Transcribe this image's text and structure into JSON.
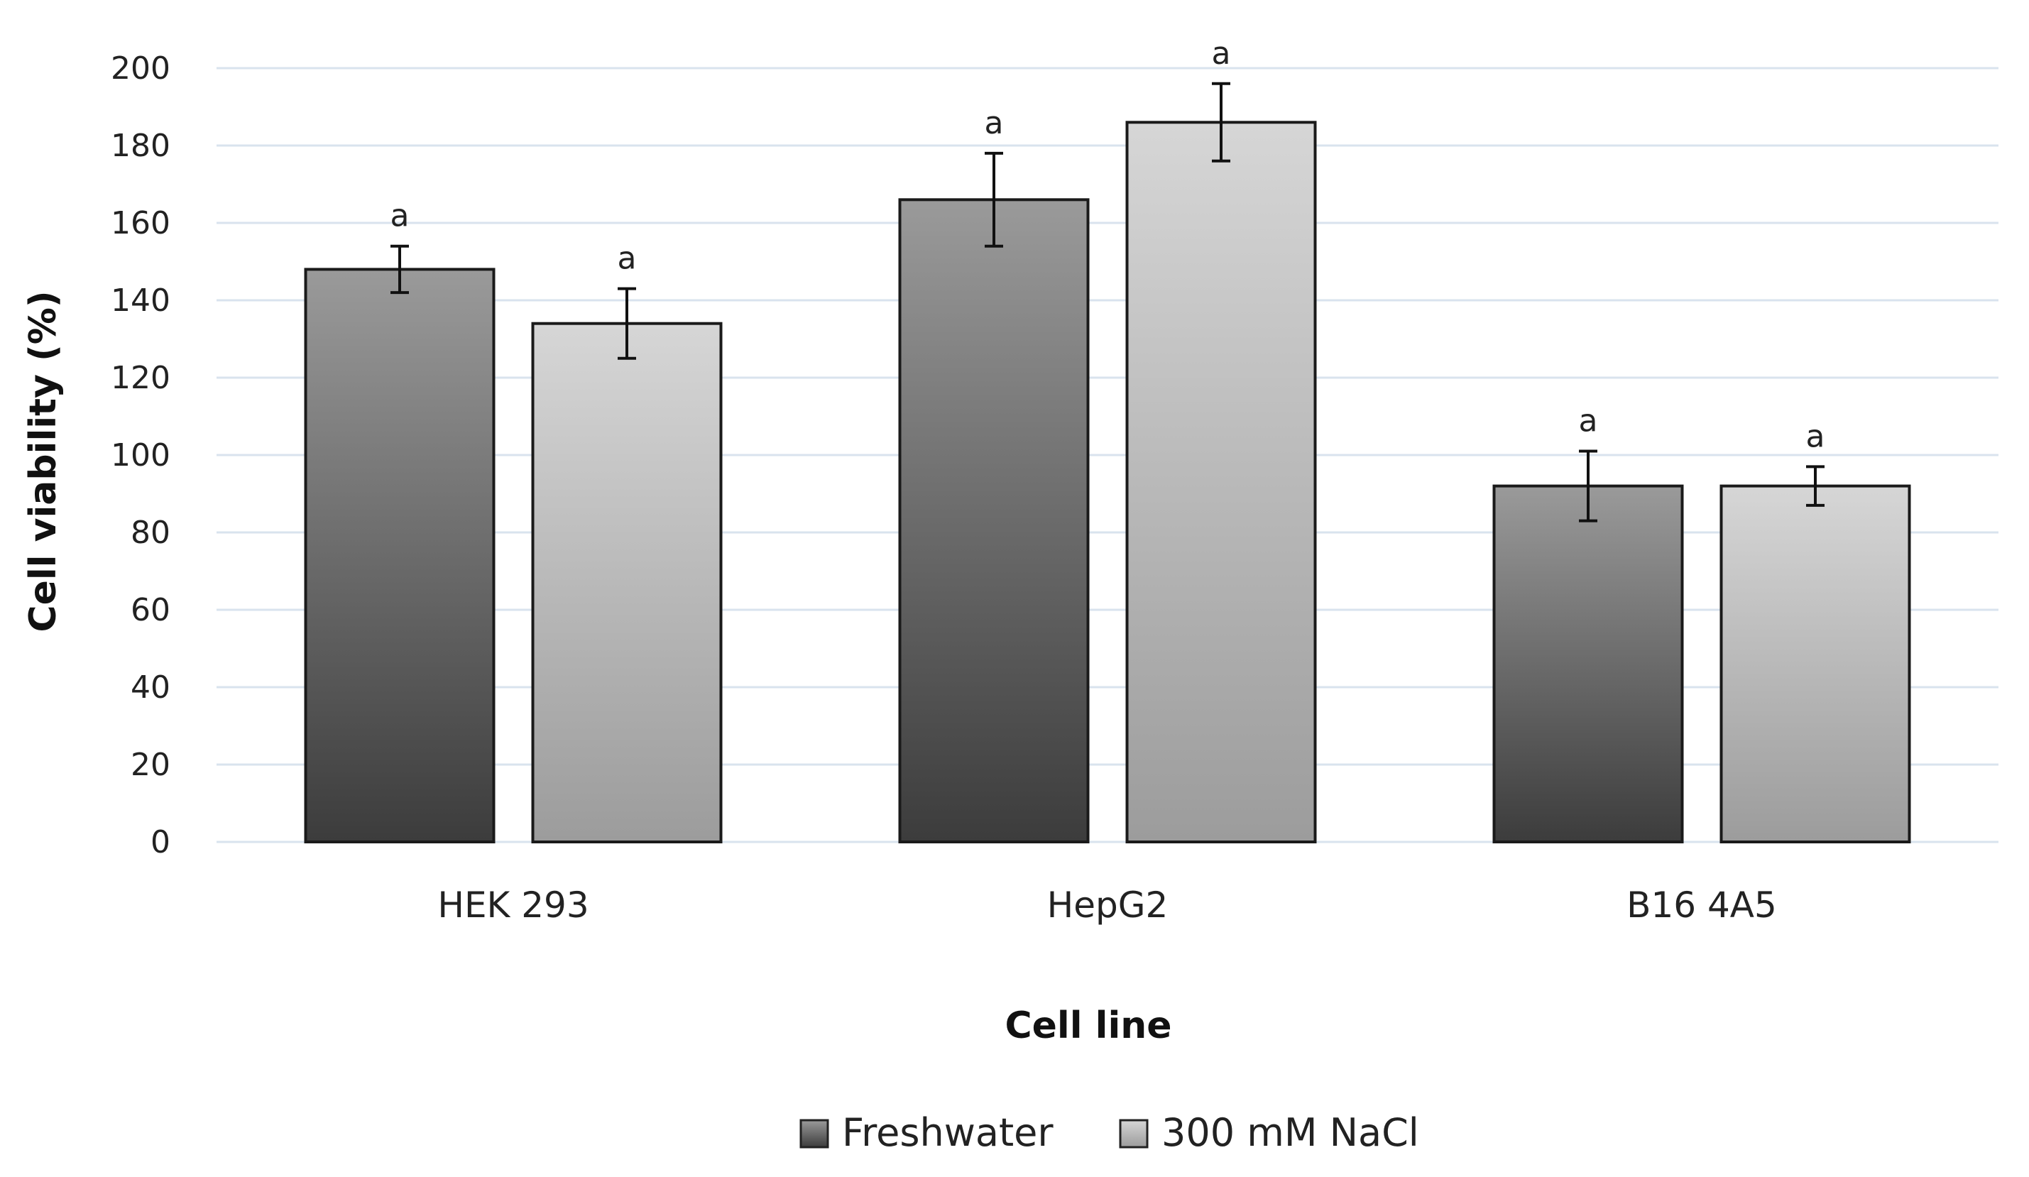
{
  "chart_data": {
    "type": "bar",
    "categories": [
      "HEK 293",
      "HepG2",
      "B16 4A5"
    ],
    "series": [
      {
        "name": "Freshwater",
        "values": [
          148,
          166,
          92
        ],
        "errors": [
          6,
          12,
          9
        ],
        "labels": [
          "a",
          "a",
          "a"
        ],
        "color_top": "#9a9a9a",
        "color_bottom": "#3c3c3c"
      },
      {
        "name": "300 mM NaCl",
        "values": [
          134,
          186,
          92
        ],
        "errors": [
          9,
          10,
          5
        ],
        "labels": [
          "a",
          "a",
          "a"
        ],
        "color_top": "#d6d6d6",
        "color_bottom": "#9c9c9c"
      }
    ],
    "xlabel": "Cell line",
    "ylabel": "Cell viability (%)",
    "ylim": [
      0,
      200
    ],
    "yticks": [
      "0",
      "20",
      "40",
      "60",
      "80",
      "100",
      "120",
      "140",
      "160",
      "180",
      "200"
    ],
    "grid": true,
    "grid_color": "#d9e3ee",
    "legend_position": "bottom"
  }
}
